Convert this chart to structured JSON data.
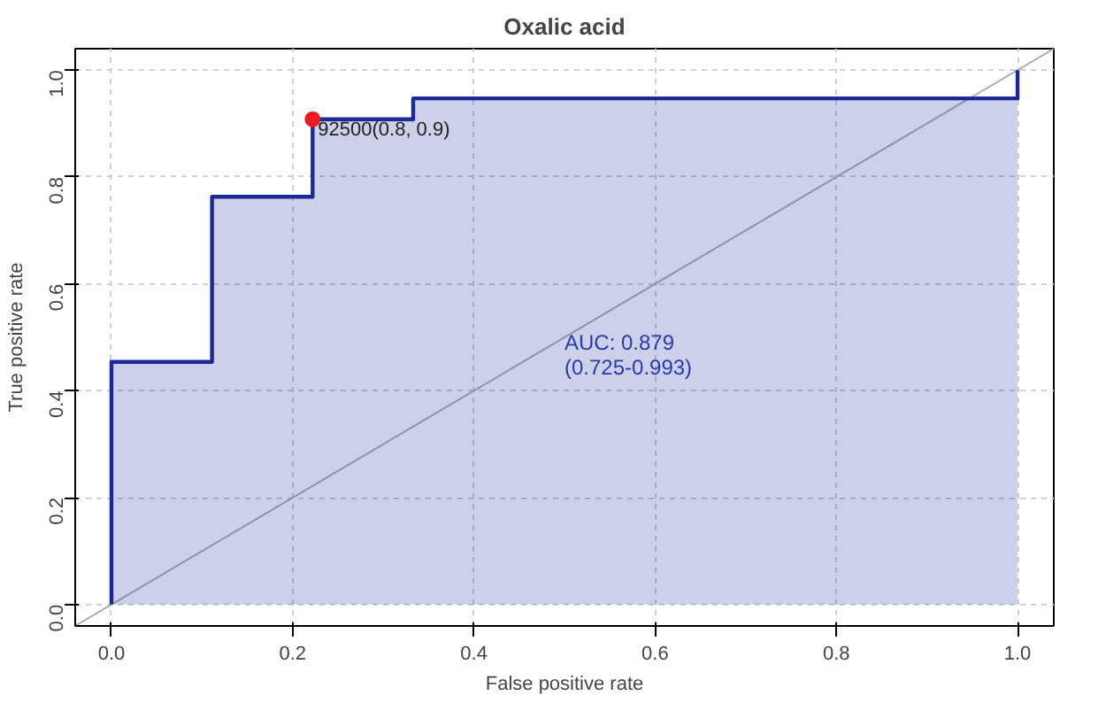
{
  "chart_data": {
    "type": "step",
    "title": "Oxalic acid",
    "xlabel": "False positive rate",
    "ylabel": "True positive rate",
    "xlim": [
      -0.04,
      1.04
    ],
    "ylim": [
      -0.04,
      1.04
    ],
    "xticks": [
      {
        "value": 0,
        "label": "0.0"
      },
      0.2,
      0.4,
      0.6,
      0.8,
      {
        "value": 1,
        "label": "1.0"
      }
    ],
    "yticks": [
      {
        "value": 0,
        "label": "0.0"
      },
      0.2,
      0.4,
      0.6,
      0.8,
      {
        "value": 1,
        "label": "1.0"
      }
    ],
    "grid": true,
    "series": [
      {
        "type": "line",
        "color": "#b0b0b0",
        "x": [
          -0.04,
          1.04
        ],
        "values": [
          -0.04,
          1.04
        ]
      },
      {
        "color": "#1c2a99",
        "x": [
          0,
          0,
          0.111,
          0.111,
          0.222,
          0.222,
          0.333,
          0.333,
          1,
          1
        ],
        "values": [
          0,
          0.454,
          0.454,
          0.763,
          0.763,
          0.908,
          0.908,
          0.947,
          0.947,
          1
        ]
      },
      {
        "type": "scatter",
        "color": "#ee1c1c",
        "x": [
          0.222
        ],
        "values": [
          0.908
        ]
      }
    ],
    "annotations": [
      {
        "text": "92500(0.8, 0.9)",
        "x": 0.222,
        "y": 0.908
      },
      "AUC: 0.879\n(0.725-0.993)"
    ]
  }
}
